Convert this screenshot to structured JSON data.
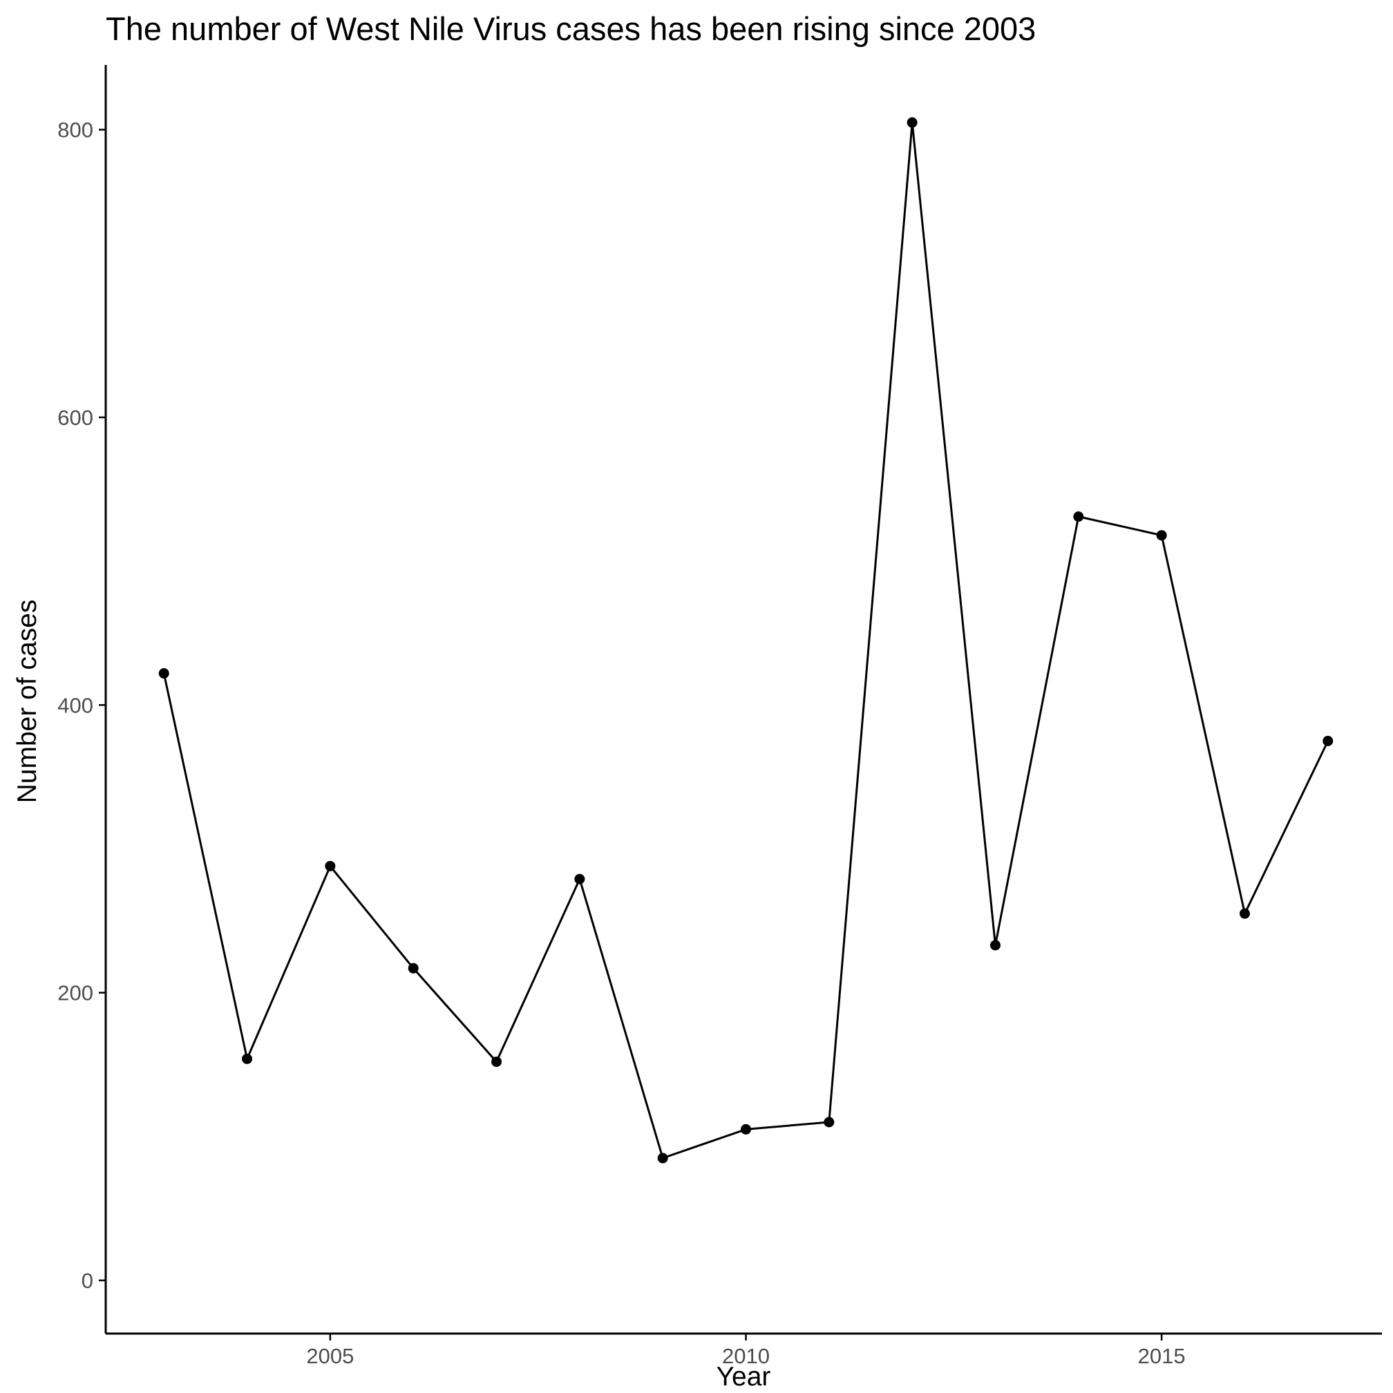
{
  "chart_data": {
    "type": "line",
    "title": "The number of West Nile Virus cases has been rising since 2003",
    "xlabel": "Year",
    "ylabel": "Number of cases",
    "x": [
      2003,
      2004,
      2005,
      2006,
      2007,
      2008,
      2009,
      2010,
      2011,
      2012,
      2013,
      2014,
      2015,
      2016,
      2017
    ],
    "series": [
      {
        "values": [
          422,
          154,
          288,
          217,
          152,
          279,
          85,
          105,
          110,
          805,
          233,
          531,
          518,
          255,
          375
        ]
      }
    ],
    "xlim": [
      2002.3,
      2017.65
    ],
    "ylim": [
      -37,
      845
    ],
    "x_ticks": [
      2005,
      2010,
      2015
    ],
    "y_ticks": [
      0,
      200,
      400,
      600,
      800
    ],
    "grid": false,
    "legend": "none",
    "colors": {
      "line": "#000000",
      "point": "#000000",
      "axis": "#000000",
      "tick_label": "#4d4d4d",
      "background": "#ffffff"
    }
  }
}
